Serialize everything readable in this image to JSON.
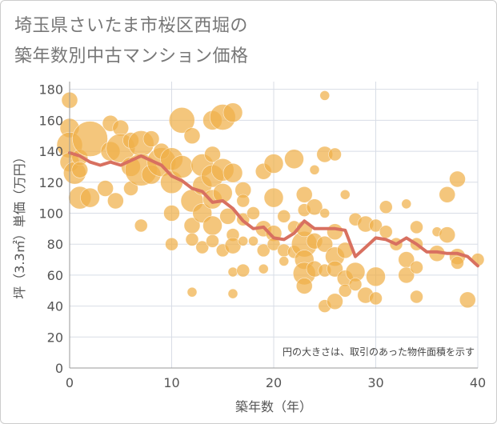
{
  "chart_data": {
    "type": "scatter",
    "title_lines": [
      "埼玉県さいたま市桜区西堀の",
      "築年数別中古マンション価格"
    ],
    "xlabel": "築年数（年）",
    "ylabel": "坪（3.3㎡）単価（万円）",
    "xlim": [
      0,
      40
    ],
    "ylim": [
      0,
      185
    ],
    "x_ticks": [
      0,
      10,
      20,
      30,
      40
    ],
    "y_ticks": [
      0,
      20,
      40,
      60,
      80,
      100,
      120,
      140,
      160,
      180
    ],
    "grid": true,
    "annotation": "円の大きさは、取引のあった物件面積を示す",
    "colors": {
      "bubble": "#f0b04a",
      "line": "#d87060",
      "grid": "#d8dde6",
      "plot_bg": "#ffffff"
    },
    "trend_line": {
      "x": [
        0,
        1,
        2,
        3,
        4,
        5,
        6,
        7,
        8,
        9,
        10,
        11,
        12,
        13,
        14,
        15,
        16,
        17,
        18,
        19,
        20,
        21,
        22,
        23,
        24,
        25,
        26,
        27,
        28,
        29,
        30,
        31,
        32,
        33,
        34,
        35,
        36,
        37,
        38,
        39,
        40
      ],
      "y": [
        139,
        137,
        133,
        131,
        133,
        131,
        134,
        137,
        134,
        131,
        124,
        121,
        116,
        114,
        107,
        108,
        103,
        95,
        90,
        91,
        84,
        83,
        87,
        95,
        90,
        90,
        90,
        89,
        72,
        78,
        84,
        83,
        80,
        84,
        80,
        75,
        75,
        74,
        74,
        72,
        66
      ]
    },
    "points": [
      {
        "x": 0,
        "y": 173,
        "s": 10
      },
      {
        "x": 0,
        "y": 155,
        "s": 12
      },
      {
        "x": 0,
        "y": 144,
        "s": 16
      },
      {
        "x": 0,
        "y": 133,
        "s": 12
      },
      {
        "x": 0.5,
        "y": 126,
        "s": 14
      },
      {
        "x": 1,
        "y": 110,
        "s": 14
      },
      {
        "x": 1,
        "y": 136,
        "s": 10
      },
      {
        "x": 1,
        "y": 128,
        "s": 10
      },
      {
        "x": 2,
        "y": 148,
        "s": 22
      },
      {
        "x": 2,
        "y": 110,
        "s": 12
      },
      {
        "x": 3.5,
        "y": 116,
        "s": 10
      },
      {
        "x": 4,
        "y": 158,
        "s": 10
      },
      {
        "x": 4,
        "y": 140,
        "s": 12
      },
      {
        "x": 4.5,
        "y": 108,
        "s": 10
      },
      {
        "x": 5,
        "y": 155,
        "s": 10
      },
      {
        "x": 5,
        "y": 142,
        "s": 18
      },
      {
        "x": 6,
        "y": 130,
        "s": 12
      },
      {
        "x": 6,
        "y": 116,
        "s": 9
      },
      {
        "x": 6,
        "y": 147,
        "s": 10
      },
      {
        "x": 7,
        "y": 145,
        "s": 16
      },
      {
        "x": 7,
        "y": 128,
        "s": 20
      },
      {
        "x": 7,
        "y": 92,
        "s": 8
      },
      {
        "x": 8,
        "y": 148,
        "s": 10
      },
      {
        "x": 8,
        "y": 125,
        "s": 12
      },
      {
        "x": 9,
        "y": 133,
        "s": 18
      },
      {
        "x": 9,
        "y": 140,
        "s": 10
      },
      {
        "x": 10,
        "y": 135,
        "s": 14
      },
      {
        "x": 10,
        "y": 120,
        "s": 14
      },
      {
        "x": 10,
        "y": 100,
        "s": 10
      },
      {
        "x": 10,
        "y": 80,
        "s": 8
      },
      {
        "x": 11,
        "y": 160,
        "s": 16
      },
      {
        "x": 11,
        "y": 130,
        "s": 14
      },
      {
        "x": 12,
        "y": 150,
        "s": 10
      },
      {
        "x": 12,
        "y": 108,
        "s": 14
      },
      {
        "x": 12,
        "y": 92,
        "s": 10
      },
      {
        "x": 12,
        "y": 83,
        "s": 8
      },
      {
        "x": 12,
        "y": 49,
        "s": 6
      },
      {
        "x": 13,
        "y": 131,
        "s": 14
      },
      {
        "x": 13,
        "y": 118,
        "s": 12
      },
      {
        "x": 13,
        "y": 100,
        "s": 12
      },
      {
        "x": 13,
        "y": 78,
        "s": 8
      },
      {
        "x": 14,
        "y": 160,
        "s": 12
      },
      {
        "x": 14,
        "y": 138,
        "s": 10
      },
      {
        "x": 14,
        "y": 124,
        "s": 14
      },
      {
        "x": 14,
        "y": 109,
        "s": 12
      },
      {
        "x": 14,
        "y": 92,
        "s": 12
      },
      {
        "x": 14,
        "y": 82,
        "s": 8
      },
      {
        "x": 15,
        "y": 162,
        "s": 16
      },
      {
        "x": 15,
        "y": 128,
        "s": 14
      },
      {
        "x": 15,
        "y": 113,
        "s": 12
      },
      {
        "x": 15,
        "y": 76,
        "s": 8
      },
      {
        "x": 15.5,
        "y": 98,
        "s": 10
      },
      {
        "x": 16,
        "y": 165,
        "s": 12
      },
      {
        "x": 16,
        "y": 126,
        "s": 12
      },
      {
        "x": 16,
        "y": 86,
        "s": 8
      },
      {
        "x": 16,
        "y": 79,
        "s": 10
      },
      {
        "x": 16,
        "y": 62,
        "s": 6
      },
      {
        "x": 16,
        "y": 48,
        "s": 6
      },
      {
        "x": 17,
        "y": 115,
        "s": 10
      },
      {
        "x": 17,
        "y": 108,
        "s": 8
      },
      {
        "x": 17,
        "y": 96,
        "s": 8
      },
      {
        "x": 17,
        "y": 82,
        "s": 6
      },
      {
        "x": 17,
        "y": 63,
        "s": 8
      },
      {
        "x": 18,
        "y": 100,
        "s": 8
      },
      {
        "x": 18,
        "y": 82,
        "s": 6
      },
      {
        "x": 19,
        "y": 127,
        "s": 10
      },
      {
        "x": 19,
        "y": 90,
        "s": 10
      },
      {
        "x": 19,
        "y": 76,
        "s": 8
      },
      {
        "x": 19,
        "y": 64,
        "s": 6
      },
      {
        "x": 20,
        "y": 132,
        "s": 12
      },
      {
        "x": 20,
        "y": 110,
        "s": 12
      },
      {
        "x": 20,
        "y": 87,
        "s": 10
      },
      {
        "x": 20,
        "y": 80,
        "s": 8
      },
      {
        "x": 21,
        "y": 98,
        "s": 8
      },
      {
        "x": 21,
        "y": 76,
        "s": 8
      },
      {
        "x": 21,
        "y": 69,
        "s": 6
      },
      {
        "x": 22,
        "y": 135,
        "s": 12
      },
      {
        "x": 22,
        "y": 91,
        "s": 8
      },
      {
        "x": 22,
        "y": 75,
        "s": 8
      },
      {
        "x": 23,
        "y": 80,
        "s": 16
      },
      {
        "x": 23,
        "y": 112,
        "s": 10
      },
      {
        "x": 23,
        "y": 102,
        "s": 8
      },
      {
        "x": 23,
        "y": 90,
        "s": 10
      },
      {
        "x": 23,
        "y": 70,
        "s": 12
      },
      {
        "x": 23,
        "y": 61,
        "s": 14
      },
      {
        "x": 23,
        "y": 53,
        "s": 10
      },
      {
        "x": 24,
        "y": 104,
        "s": 10
      },
      {
        "x": 24,
        "y": 82,
        "s": 10
      },
      {
        "x": 24,
        "y": 64,
        "s": 10
      },
      {
        "x": 24,
        "y": 128,
        "s": 6
      },
      {
        "x": 25,
        "y": 176,
        "s": 6
      },
      {
        "x": 25,
        "y": 138,
        "s": 10
      },
      {
        "x": 25,
        "y": 100,
        "s": 6
      },
      {
        "x": 25,
        "y": 80,
        "s": 10
      },
      {
        "x": 25,
        "y": 63,
        "s": 8
      },
      {
        "x": 25,
        "y": 40,
        "s": 8
      },
      {
        "x": 26,
        "y": 138,
        "s": 8
      },
      {
        "x": 26,
        "y": 88,
        "s": 10
      },
      {
        "x": 26,
        "y": 72,
        "s": 12
      },
      {
        "x": 26,
        "y": 64,
        "s": 10
      },
      {
        "x": 26,
        "y": 43,
        "s": 10
      },
      {
        "x": 27,
        "y": 112,
        "s": 6
      },
      {
        "x": 27,
        "y": 76,
        "s": 10
      },
      {
        "x": 27,
        "y": 58,
        "s": 10
      },
      {
        "x": 27,
        "y": 50,
        "s": 8
      },
      {
        "x": 28,
        "y": 96,
        "s": 8
      },
      {
        "x": 28,
        "y": 62,
        "s": 12
      },
      {
        "x": 28,
        "y": 54,
        "s": 8
      },
      {
        "x": 29,
        "y": 93,
        "s": 10
      },
      {
        "x": 29,
        "y": 47,
        "s": 10
      },
      {
        "x": 30,
        "y": 92,
        "s": 8
      },
      {
        "x": 30,
        "y": 59,
        "s": 12
      },
      {
        "x": 30,
        "y": 45,
        "s": 8
      },
      {
        "x": 31,
        "y": 104,
        "s": 8
      },
      {
        "x": 31,
        "y": 88,
        "s": 8
      },
      {
        "x": 32,
        "y": 80,
        "s": 8
      },
      {
        "x": 33,
        "y": 106,
        "s": 6
      },
      {
        "x": 33,
        "y": 70,
        "s": 10
      },
      {
        "x": 33,
        "y": 60,
        "s": 10
      },
      {
        "x": 34,
        "y": 91,
        "s": 8
      },
      {
        "x": 34,
        "y": 80,
        "s": 8
      },
      {
        "x": 34,
        "y": 65,
        "s": 8
      },
      {
        "x": 34,
        "y": 46,
        "s": 8
      },
      {
        "x": 36,
        "y": 74,
        "s": 10
      },
      {
        "x": 36,
        "y": 88,
        "s": 6
      },
      {
        "x": 37,
        "y": 112,
        "s": 10
      },
      {
        "x": 37,
        "y": 86,
        "s": 10
      },
      {
        "x": 38,
        "y": 72,
        "s": 10
      },
      {
        "x": 38,
        "y": 68,
        "s": 8
      },
      {
        "x": 38,
        "y": 122,
        "s": 10
      },
      {
        "x": 39,
        "y": 44,
        "s": 10
      },
      {
        "x": 40,
        "y": 70,
        "s": 8
      }
    ]
  }
}
